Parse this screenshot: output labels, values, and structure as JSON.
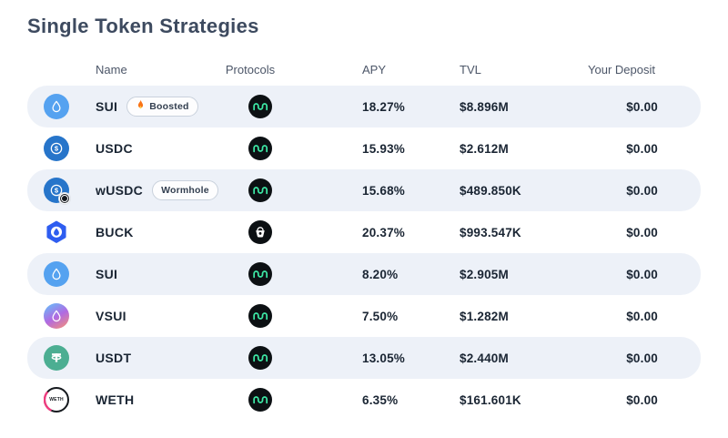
{
  "page": {
    "title": "Single Token Strategies"
  },
  "colors": {
    "row_highlight": "#edf1f8",
    "title_text": "#3d4a5f",
    "header_text": "#4c5668",
    "value_text": "#1a2533",
    "sui_blue": "#55a2f0",
    "usdc_blue": "#2775ca",
    "usdt_teal": "#4cae92",
    "buck_blue": "#2e5df0",
    "navi_green": "#3de8a5",
    "weth_pink": "#ee3d7f"
  },
  "table": {
    "headers": [
      "Name",
      "Protocols",
      "APY",
      "TVL",
      "Your Deposit"
    ],
    "rows": [
      {
        "name": "SUI",
        "badge": "Boosted",
        "badge_icon": "flame-icon",
        "token_icon": "sui",
        "protocol_icon": "green-wave",
        "apy": "18.27%",
        "tvl": "$8.896M",
        "deposit": "$0.00",
        "highlighted": true
      },
      {
        "name": "USDC",
        "badge": "",
        "badge_icon": "",
        "token_icon": "usdc",
        "protocol_icon": "green-wave",
        "apy": "15.93%",
        "tvl": "$2.612M",
        "deposit": "$0.00",
        "highlighted": false
      },
      {
        "name": "wUSDC",
        "badge": "Wormhole",
        "badge_icon": "",
        "token_icon": "wusdc",
        "protocol_icon": "green-wave",
        "apy": "15.68%",
        "tvl": "$489.850K",
        "deposit": "$0.00",
        "highlighted": true
      },
      {
        "name": "BUCK",
        "badge": "",
        "badge_icon": "",
        "token_icon": "buck",
        "protocol_icon": "bucket",
        "apy": "20.37%",
        "tvl": "$993.547K",
        "deposit": "$0.00",
        "highlighted": false
      },
      {
        "name": "SUI",
        "badge": "",
        "badge_icon": "",
        "token_icon": "sui",
        "protocol_icon": "green-wave",
        "apy": "8.20%",
        "tvl": "$2.905M",
        "deposit": "$0.00",
        "highlighted": true
      },
      {
        "name": "VSUI",
        "badge": "",
        "badge_icon": "",
        "token_icon": "vsui",
        "protocol_icon": "green-wave",
        "apy": "7.50%",
        "tvl": "$1.282M",
        "deposit": "$0.00",
        "highlighted": false
      },
      {
        "name": "USDT",
        "badge": "",
        "badge_icon": "",
        "token_icon": "usdt",
        "protocol_icon": "green-wave",
        "apy": "13.05%",
        "tvl": "$2.440M",
        "deposit": "$0.00",
        "highlighted": true
      },
      {
        "name": "WETH",
        "badge": "",
        "badge_icon": "",
        "token_icon": "weth",
        "protocol_icon": "green-wave",
        "apy": "6.35%",
        "tvl": "$161.601K",
        "deposit": "$0.00",
        "highlighted": false
      }
    ]
  }
}
